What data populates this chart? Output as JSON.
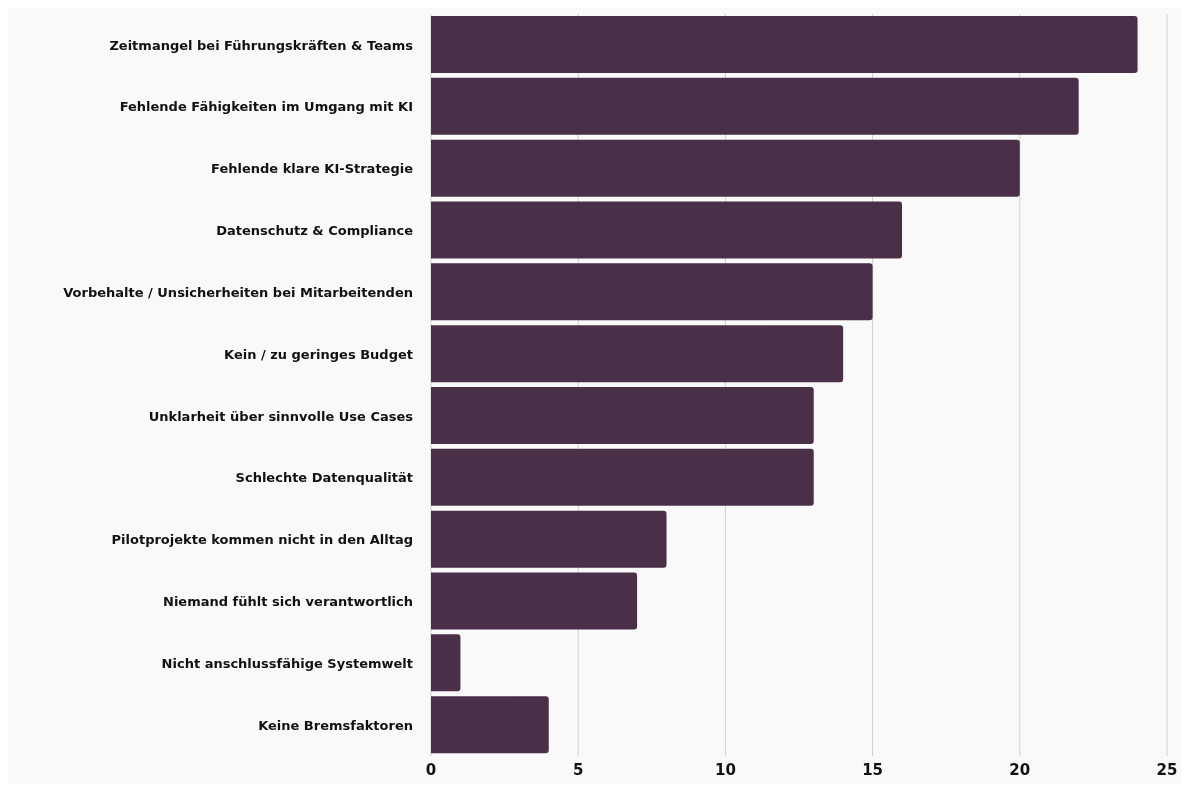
{
  "chart_data": {
    "type": "bar",
    "orientation": "horizontal",
    "categories": [
      "Zeitmangel bei Führungskräften & Teams",
      "Fehlende Fähigkeiten im Umgang mit KI",
      "Fehlende klare KI-Strategie",
      "Datenschutz & Compliance",
      "Vorbehalte / Unsicherheiten bei Mitarbeitenden",
      "Kein / zu geringes Budget",
      "Unklarheit über sinnvolle Use Cases",
      "Schlechte Datenqualität",
      "Pilotprojekte kommen nicht in den Alltag",
      "Niemand fühlt sich verantwortlich",
      "Nicht anschlussfähige Systemwelt",
      "Keine Bremsfaktoren"
    ],
    "values": [
      24,
      22,
      20,
      16,
      15,
      14,
      13,
      13,
      8,
      7,
      1,
      4
    ],
    "color": "#4a2f48",
    "xlim": [
      0,
      25
    ],
    "xticks": [
      0,
      5,
      10,
      15,
      20,
      25
    ],
    "grid": "x"
  }
}
